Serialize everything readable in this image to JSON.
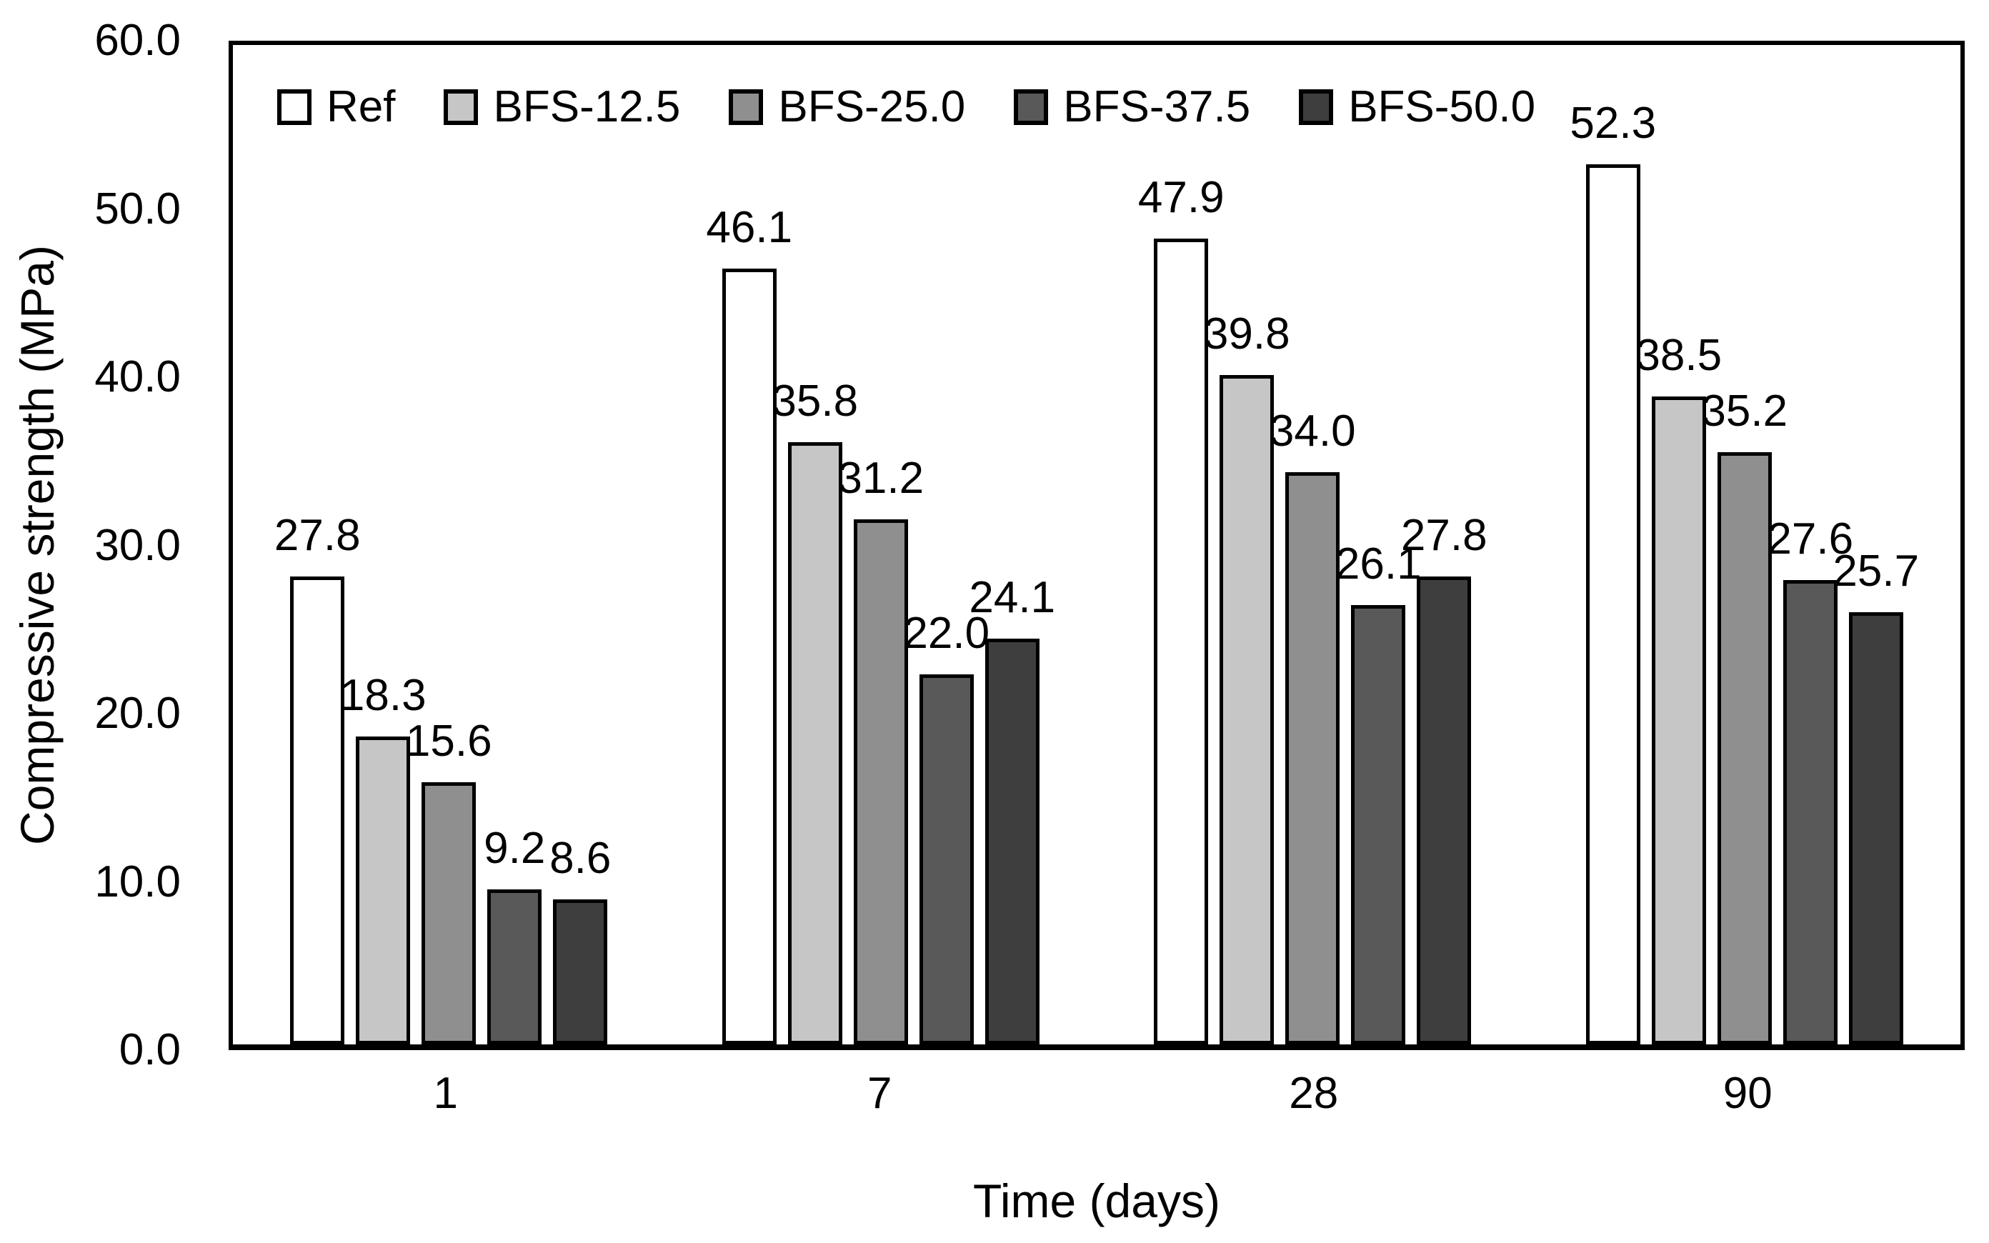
{
  "chart_data": {
    "type": "bar",
    "title": "",
    "xlabel": "Time (days)",
    "ylabel": "Compressive strength (MPa)",
    "categories": [
      "1",
      "7",
      "28",
      "90"
    ],
    "series": [
      {
        "name": "Ref",
        "fill": "#ffffff",
        "values": [
          27.8,
          46.1,
          47.9,
          52.3
        ]
      },
      {
        "name": "BFS-12.5",
        "fill": "#c6c6c6",
        "values": [
          18.3,
          35.8,
          39.8,
          38.5
        ]
      },
      {
        "name": "BFS-25.0",
        "fill": "#8f8f8f",
        "values": [
          15.6,
          31.2,
          34.0,
          35.2
        ]
      },
      {
        "name": "BFS-37.5",
        "fill": "#595959",
        "values": [
          9.2,
          22.0,
          26.1,
          27.6
        ]
      },
      {
        "name": "BFS-50.0",
        "fill": "#3e3e3e",
        "values": [
          8.6,
          24.1,
          27.8,
          25.7
        ]
      }
    ],
    "ylim": [
      0,
      60
    ],
    "ytick_step": 10,
    "ytick_labels": [
      "0.0",
      "10.0",
      "20.0",
      "30.0",
      "40.0",
      "50.0",
      "60.0"
    ],
    "grid": false,
    "legend_position": "top-inside-left",
    "bar_border_color": "#000000",
    "text_color": "#000000",
    "data_label_decimals": 1
  }
}
